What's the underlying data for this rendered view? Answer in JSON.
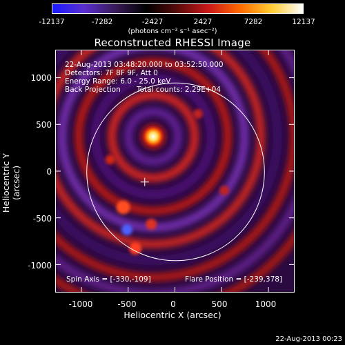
{
  "colorbar": {
    "tick_labels": [
      "-12137",
      "-7282",
      "-2427",
      "2427",
      "7282",
      "12137"
    ],
    "units_text": "(photons cm⁻² s⁻¹ asec⁻²)",
    "range": [
      -12137,
      12137
    ],
    "colors": [
      "#1a1aff",
      "#5a2fd0",
      "#3a1a5a",
      "#000000",
      "#5a0a0a",
      "#cc1a1a",
      "#ff6a00",
      "#ffcc33",
      "#ffffff"
    ]
  },
  "title": "Reconstructed RHESSI Image",
  "info": {
    "time_range": "22-Aug-2013 03:48:20.000 to 03:52:50.000",
    "detectors": "Detectors: 7F 8F 9F, Att 0",
    "energy": "Energy Range: 6.0 - 25.0 keV",
    "method": "Back Projection",
    "counts": "Total counts: 2.29E+04"
  },
  "bottom": {
    "spin_axis": "Spin Axis = [-330,-109]",
    "flare_position": "Flare Position = [-239,378]"
  },
  "axes": {
    "x_title": "Heliocentric X (arcsec)",
    "y_title": "Heliocentric Y (arcsec)",
    "x_ticks": [
      "-1000",
      "-500",
      "0",
      "500",
      "1000"
    ],
    "y_ticks": [
      "1000",
      "500",
      "0",
      "-500",
      "-1000"
    ],
    "x_range": [
      -1280,
      1280
    ],
    "y_range": [
      -1300,
      1300
    ]
  },
  "footer_timestamp": "22-Aug-2013 00:23",
  "image_data": {
    "solar_radius_arcsec": 950,
    "bright_source_arcsec": [
      -239,
      378
    ],
    "spin_axis_arcsec": [
      -330,
      -109
    ]
  }
}
